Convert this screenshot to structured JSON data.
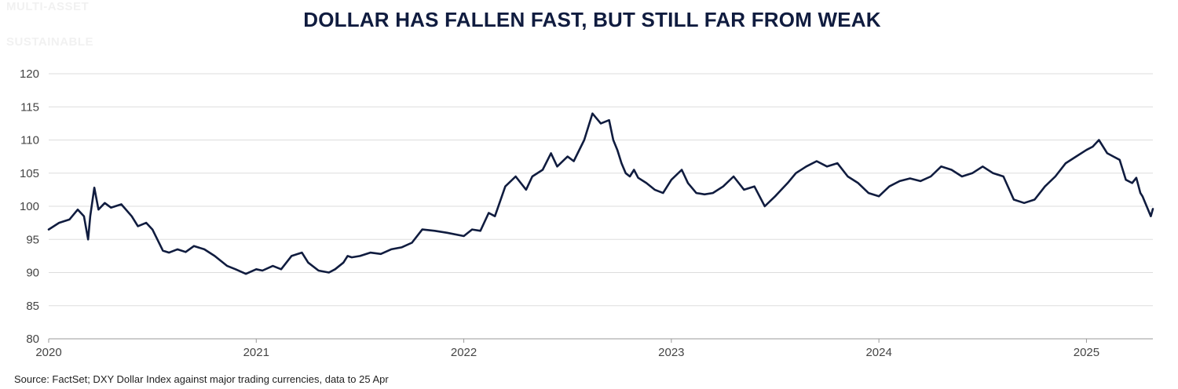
{
  "watermarks": [
    "MULTI-ASSET",
    "SUSTAINABLE"
  ],
  "source": "Source: FactSet; DXY Dollar Index against major trading currencies, data to 25 Apr",
  "colors": {
    "line": "#101c3f",
    "grid": "#dddddd",
    "axis": "#999999",
    "title": "#101c3f"
  },
  "chart_data": {
    "type": "line",
    "title": "DOLLAR HAS FALLEN FAST, BUT STILL FAR FROM WEAK",
    "xlabel": "",
    "ylabel": "",
    "ylim": [
      80,
      120
    ],
    "yticks": [
      80,
      85,
      90,
      95,
      100,
      105,
      110,
      115,
      120
    ],
    "xlim": [
      2020.0,
      2025.32
    ],
    "xticks": [
      2020,
      2021,
      2022,
      2023,
      2024,
      2025
    ],
    "grid": true,
    "legend": "none",
    "series": [
      {
        "name": "DXY Dollar Index",
        "x": [
          2020.0,
          2020.05,
          2020.1,
          2020.14,
          2020.17,
          2020.19,
          2020.2,
          2020.22,
          2020.24,
          2020.27,
          2020.3,
          2020.35,
          2020.4,
          2020.43,
          2020.47,
          2020.5,
          2020.55,
          2020.58,
          2020.62,
          2020.66,
          2020.7,
          2020.75,
          2020.8,
          2020.86,
          2020.9,
          2020.95,
          2021.0,
          2021.03,
          2021.08,
          2021.12,
          2021.17,
          2021.22,
          2021.25,
          2021.3,
          2021.35,
          2021.38,
          2021.42,
          2021.44,
          2021.46,
          2021.5,
          2021.55,
          2021.6,
          2021.65,
          2021.7,
          2021.75,
          2021.8,
          2021.86,
          2021.92,
          2022.0,
          2022.04,
          2022.08,
          2022.12,
          2022.15,
          2022.2,
          2022.25,
          2022.3,
          2022.33,
          2022.38,
          2022.42,
          2022.45,
          2022.5,
          2022.53,
          2022.58,
          2022.62,
          2022.66,
          2022.7,
          2022.72,
          2022.74,
          2022.76,
          2022.78,
          2022.8,
          2022.82,
          2022.84,
          2022.88,
          2022.92,
          2022.96,
          2023.0,
          2023.05,
          2023.08,
          2023.12,
          2023.16,
          2023.2,
          2023.25,
          2023.3,
          2023.35,
          2023.4,
          2023.45,
          2023.5,
          2023.53,
          2023.56,
          2023.6,
          2023.65,
          2023.7,
          2023.75,
          2023.8,
          2023.85,
          2023.9,
          2023.95,
          2024.0,
          2024.05,
          2024.1,
          2024.15,
          2024.2,
          2024.25,
          2024.3,
          2024.35,
          2024.4,
          2024.45,
          2024.5,
          2024.55,
          2024.6,
          2024.65,
          2024.7,
          2024.75,
          2024.8,
          2024.85,
          2024.9,
          2024.95,
          2025.0,
          2025.03,
          2025.06,
          2025.1,
          2025.13,
          2025.16,
          2025.19,
          2025.22,
          2025.24,
          2025.26,
          2025.27,
          2025.29,
          2025.31,
          2025.32
        ],
        "values": [
          96.5,
          97.5,
          98.0,
          99.5,
          98.5,
          95.0,
          98.5,
          102.8,
          99.5,
          100.5,
          99.8,
          100.3,
          98.5,
          97.0,
          97.5,
          96.5,
          93.3,
          93.0,
          93.5,
          93.1,
          94.0,
          93.5,
          92.5,
          91.0,
          90.5,
          89.8,
          90.5,
          90.3,
          91.0,
          90.5,
          92.5,
          93.0,
          91.5,
          90.3,
          90.0,
          90.5,
          91.5,
          92.5,
          92.3,
          92.5,
          93.0,
          92.8,
          93.5,
          93.8,
          94.5,
          96.5,
          96.3,
          96.0,
          95.5,
          96.5,
          96.3,
          99.0,
          98.5,
          103.0,
          104.5,
          102.5,
          104.5,
          105.5,
          108.0,
          106.0,
          107.5,
          106.8,
          110.0,
          114.0,
          112.5,
          113.0,
          110.0,
          108.5,
          106.5,
          105.0,
          104.5,
          105.5,
          104.3,
          103.5,
          102.5,
          102.0,
          104.0,
          105.5,
          103.5,
          102.0,
          101.8,
          102.0,
          103.0,
          104.5,
          102.5,
          103.0,
          100.0,
          101.5,
          102.5,
          103.5,
          105.0,
          106.0,
          106.8,
          106.0,
          106.5,
          104.5,
          103.5,
          102.0,
          101.5,
          103.0,
          103.8,
          104.2,
          103.8,
          104.5,
          106.0,
          105.5,
          104.5,
          105.0,
          106.0,
          105.0,
          104.5,
          101.0,
          100.5,
          101.0,
          103.0,
          104.5,
          106.5,
          107.5,
          108.5,
          109.0,
          110.0,
          108.0,
          107.5,
          107.0,
          104.0,
          103.5,
          104.3,
          102.0,
          101.5,
          100.0,
          98.5,
          99.6
        ]
      }
    ]
  }
}
